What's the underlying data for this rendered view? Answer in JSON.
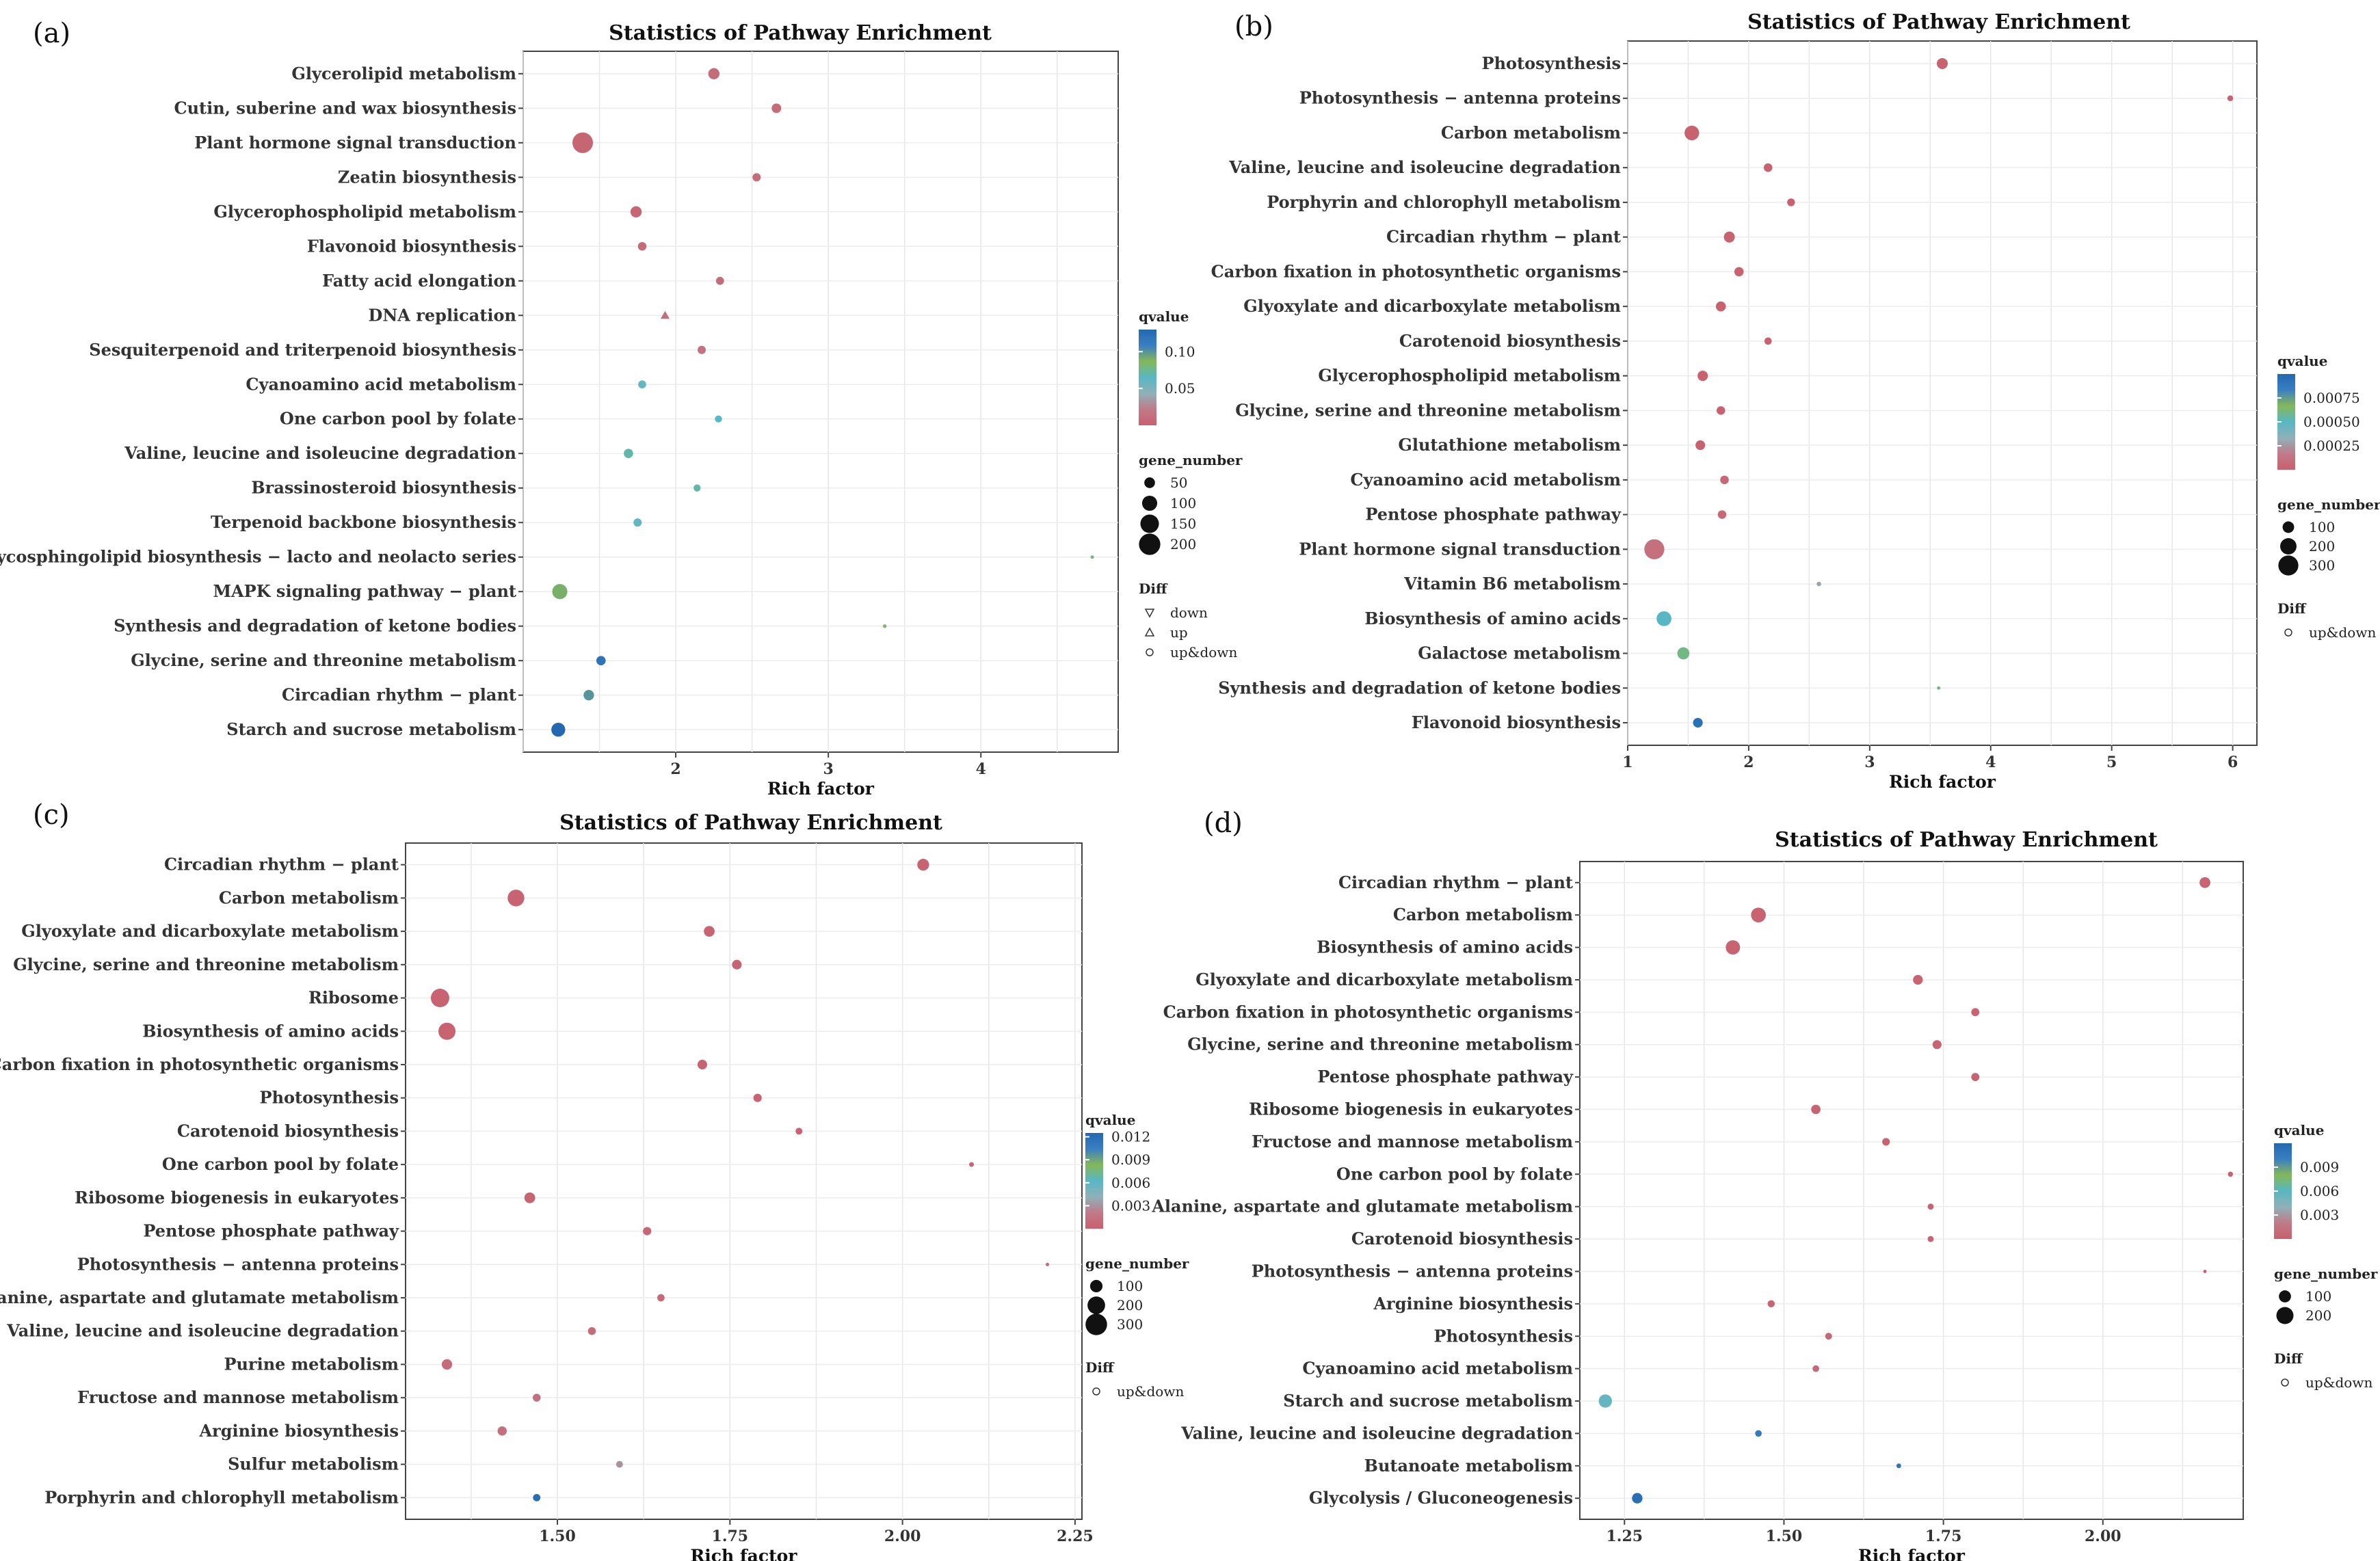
{
  "chart_data": [
    {
      "label": "(a)",
      "type": "scatter",
      "title": "Statistics of Pathway Enrichment",
      "xlabel": "Rich factor",
      "xlim": [
        1.0,
        4.9
      ],
      "xticks": [
        2,
        3,
        4
      ],
      "grid": true,
      "categories": [
        "Glycerolipid metabolism",
        "Cutin, suberine and wax biosynthesis",
        "Plant hormone signal transduction",
        "Zeatin biosynthesis",
        "Glycerophospholipid metabolism",
        "Flavonoid biosynthesis",
        "Fatty acid elongation",
        "DNA replication",
        "Sesquiterpenoid and triterpenoid biosynthesis",
        "Cyanoamino acid metabolism",
        "One carbon pool by folate",
        "Valine, leucine and isoleucine degradation",
        "Brassinosteroid biosynthesis",
        "Terpenoid backbone biosynthesis",
        "Glycosphingolipid biosynthesis − lacto and neolacto series",
        "MAPK signaling pathway − plant",
        "Synthesis and degradation of ketone bodies",
        "Glycine, serine and threonine metabolism",
        "Circadian rhythm − plant",
        "Starch and sucrose metabolism"
      ],
      "x": [
        2.25,
        2.66,
        1.39,
        2.53,
        1.74,
        1.78,
        2.29,
        1.93,
        2.17,
        1.78,
        2.28,
        1.69,
        2.14,
        1.75,
        4.73,
        1.24,
        3.37,
        1.51,
        1.43,
        1.23
      ],
      "gene_number": [
        55,
        40,
        185,
        30,
        55,
        32,
        28,
        18,
        30,
        28,
        22,
        38,
        22,
        30,
        4,
        100,
        6,
        38,
        48,
        85
      ],
      "qvalue": [
        0.01,
        0.01,
        0.005,
        0.01,
        0.005,
        0.01,
        0.01,
        0.01,
        0.015,
        0.06,
        0.065,
        0.07,
        0.07,
        0.06,
        0.08,
        0.09,
        0.085,
        0.12,
        0.1,
        0.13
      ],
      "diff": [
        "up&down",
        "up&down",
        "up&down",
        "up&down",
        "up&down",
        "up&down",
        "up&down",
        "up",
        "up&down",
        "up&down",
        "up&down",
        "up&down",
        "up&down",
        "up&down",
        "up&down",
        "up&down",
        "up&down",
        "up&down",
        "up&down",
        "up&down"
      ],
      "legend": {
        "qvalue_title": "qvalue",
        "qvalue_ticks": [
          "0.10",
          "0.05"
        ],
        "qvalue_tick_values": [
          0.1,
          0.05
        ],
        "qvalue_range": [
          0,
          0.13
        ],
        "size_title": "gene_number",
        "size_labels": [
          "50",
          "100",
          "150",
          "200"
        ],
        "size_values": [
          50,
          100,
          150,
          200
        ],
        "diff_title": "Diff",
        "diff_labels": [
          "down",
          "up",
          "up&down"
        ],
        "diff_shapes": [
          "triangle-down",
          "triangle-up",
          "circle"
        ]
      }
    },
    {
      "label": "(b)",
      "type": "scatter",
      "title": "Statistics of Pathway Enrichment",
      "xlabel": "Rich factor",
      "xlim": [
        1.0,
        6.2
      ],
      "xticks": [
        1,
        2,
        3,
        4,
        5,
        6
      ],
      "grid": true,
      "categories": [
        "Photosynthesis",
        "Photosynthesis − antenna proteins",
        "Carbon metabolism",
        "Valine, leucine and isoleucine degradation",
        "Porphyrin and chlorophyll metabolism",
        "Circadian rhythm − plant",
        "Carbon fixation in photosynthetic organisms",
        "Glyoxylate and dicarboxylate metabolism",
        "Carotenoid biosynthesis",
        "Glycerophospholipid metabolism",
        "Glycine, serine and threonine metabolism",
        "Glutathione metabolism",
        "Cyanoamino acid metabolism",
        "Pentose phosphate pathway",
        "Plant hormone signal transduction",
        "Vitamin B6 metabolism",
        "Biosynthesis of amino acids",
        "Galactose metabolism",
        "Synthesis and degradation of ketone bodies",
        "Flavonoid biosynthesis"
      ],
      "x": [
        3.6,
        5.98,
        1.53,
        2.16,
        2.35,
        1.84,
        1.92,
        1.77,
        2.16,
        1.62,
        1.77,
        1.6,
        1.8,
        1.78,
        1.22,
        2.58,
        1.3,
        1.46,
        3.57,
        1.58
      ],
      "gene_number": [
        90,
        25,
        160,
        55,
        45,
        90,
        65,
        75,
        40,
        80,
        55,
        70,
        55,
        55,
        300,
        15,
        165,
        110,
        6,
        70
      ],
      "qvalue": [
        1e-05,
        1e-05,
        1e-05,
        1e-05,
        1e-05,
        1e-05,
        1e-05,
        1e-05,
        1e-05,
        1e-05,
        1e-05,
        1e-05,
        5e-05,
        6e-05,
        0.0001,
        0.0003,
        0.0005,
        0.0006,
        0.0006,
        0.00095
      ],
      "diff": [
        "up&down",
        "up&down",
        "up&down",
        "up&down",
        "up&down",
        "up&down",
        "up&down",
        "up&down",
        "up&down",
        "up&down",
        "up&down",
        "up&down",
        "up&down",
        "up&down",
        "up&down",
        "up&down",
        "up&down",
        "up&down",
        "up&down",
        "up&down"
      ],
      "legend": {
        "qvalue_title": "qvalue",
        "qvalue_ticks": [
          "0.00075",
          "0.00050",
          "0.00025"
        ],
        "qvalue_tick_values": [
          0.00075,
          0.0005,
          0.00025
        ],
        "qvalue_range": [
          0,
          0.001
        ],
        "size_title": "gene_number",
        "size_labels": [
          "100",
          "200",
          "300"
        ],
        "size_values": [
          100,
          200,
          300
        ],
        "diff_title": "Diff",
        "diff_labels": [
          "up&down"
        ],
        "diff_shapes": [
          "circle"
        ]
      }
    },
    {
      "label": "(c)",
      "type": "scatter",
      "title": "Statistics of Pathway Enrichment",
      "xlabel": "Rich factor",
      "xlim": [
        1.28,
        2.26
      ],
      "xticks": [
        1.5,
        1.75,
        2.0,
        2.25
      ],
      "xtick_labels": [
        "1.50",
        "1.75",
        "2.00",
        "2.25"
      ],
      "grid": true,
      "categories": [
        "Circadian rhythm − plant",
        "Carbon metabolism",
        "Glyoxylate and dicarboxylate metabolism",
        "Glycine, serine and threonine metabolism",
        "Ribosome",
        "Biosynthesis of amino acids",
        "Carbon fixation in photosynthetic organisms",
        "Photosynthesis",
        "Carotenoid biosynthesis",
        "One carbon pool by folate",
        "Ribosome biogenesis in eukaryotes",
        "Pentose phosphate pathway",
        "Photosynthesis − antenna proteins",
        "Alanine, aspartate and glutamate metabolism",
        "Valine, leucine and isoleucine degradation",
        "Purine metabolism",
        "Fructose and mannose metabolism",
        "Arginine biosynthesis",
        "Sulfur metabolism",
        "Porphyrin and chlorophyll metabolism"
      ],
      "x": [
        2.03,
        1.44,
        1.72,
        1.76,
        1.33,
        1.34,
        1.71,
        1.79,
        1.85,
        2.1,
        1.46,
        1.63,
        2.21,
        1.65,
        1.55,
        1.34,
        1.47,
        1.42,
        1.59,
        1.47
      ],
      "gene_number": [
        90,
        180,
        75,
        60,
        220,
        190,
        60,
        45,
        30,
        15,
        75,
        45,
        8,
        35,
        40,
        70,
        40,
        55,
        30,
        35
      ],
      "qvalue": [
        0.0003,
        0.0003,
        0.0003,
        0.0003,
        0.0003,
        0.0003,
        0.0003,
        0.0003,
        0.0003,
        0.0004,
        0.0005,
        0.0006,
        0.0008,
        0.0008,
        0.0009,
        0.001,
        0.0012,
        0.0013,
        0.003,
        0.012
      ],
      "diff": [
        "up&down",
        "up&down",
        "up&down",
        "up&down",
        "up&down",
        "up&down",
        "up&down",
        "up&down",
        "up&down",
        "up&down",
        "up&down",
        "up&down",
        "up&down",
        "up&down",
        "up&down",
        "up&down",
        "up&down",
        "up&down",
        "up&down",
        "up&down"
      ],
      "legend": {
        "qvalue_title": "qvalue",
        "qvalue_ticks": [
          "0.012",
          "0.009",
          "0.006",
          "0.003"
        ],
        "qvalue_tick_values": [
          0.012,
          0.009,
          0.006,
          0.003
        ],
        "qvalue_range": [
          0,
          0.0125
        ],
        "size_title": "gene_number",
        "size_labels": [
          "100",
          "200",
          "300"
        ],
        "size_values": [
          100,
          200,
          300
        ],
        "diff_title": "Diff",
        "diff_labels": [
          "up&down"
        ],
        "diff_shapes": [
          "circle"
        ]
      }
    },
    {
      "label": "(d)",
      "type": "scatter",
      "title": "Statistics of Pathway Enrichment",
      "xlabel": "Rich factor",
      "xlim": [
        1.18,
        2.22
      ],
      "xticks": [
        1.25,
        1.5,
        1.75,
        2.0
      ],
      "xtick_labels": [
        "1.25",
        "1.50",
        "1.75",
        "2.00"
      ],
      "grid": true,
      "categories": [
        "Circadian rhythm − plant",
        "Carbon metabolism",
        "Biosynthesis of amino acids",
        "Glyoxylate and dicarboxylate metabolism",
        "Carbon fixation in photosynthetic organisms",
        "Glycine, serine and threonine metabolism",
        "Pentose phosphate pathway",
        "Ribosome biogenesis in eukaryotes",
        "Fructose and mannose metabolism",
        "One carbon pool by folate",
        "Alanine, aspartate and glutamate metabolism",
        "Carotenoid biosynthesis",
        "Photosynthesis − antenna proteins",
        "Arginine biosynthesis",
        "Photosynthesis",
        "Cyanoamino acid metabolism",
        "Starch and sucrose metabolism",
        "Valine, leucine and isoleucine degradation",
        "Butanoate metabolism",
        "Glycolysis / Gluconeogenesis"
      ],
      "x": [
        2.16,
        1.46,
        1.42,
        1.71,
        1.8,
        1.74,
        1.8,
        1.55,
        1.66,
        2.2,
        1.73,
        1.73,
        2.16,
        1.48,
        1.57,
        1.55,
        1.22,
        1.46,
        1.68,
        1.27
      ],
      "gene_number": [
        80,
        150,
        140,
        65,
        45,
        55,
        45,
        60,
        40,
        18,
        25,
        25,
        5,
        35,
        32,
        30,
        120,
        30,
        15,
        75
      ],
      "qvalue": [
        0.0003,
        0.0003,
        0.0003,
        0.0003,
        0.0003,
        0.0003,
        0.0003,
        0.0003,
        0.0003,
        0.0003,
        0.0003,
        0.0003,
        0.0003,
        0.0004,
        0.0005,
        0.0006,
        0.0055,
        0.0105,
        0.011,
        0.0115
      ],
      "diff": [
        "up&down",
        "up&down",
        "up&down",
        "up&down",
        "up&down",
        "up&down",
        "up&down",
        "up&down",
        "up&down",
        "up&down",
        "up&down",
        "up&down",
        "up&down",
        "up&down",
        "up&down",
        "up&down",
        "up&down",
        "up&down",
        "up&down",
        "up&down"
      ],
      "legend": {
        "qvalue_title": "qvalue",
        "qvalue_ticks": [
          "0.009",
          "0.006",
          "0.003"
        ],
        "qvalue_tick_values": [
          0.009,
          0.006,
          0.003
        ],
        "qvalue_range": [
          0,
          0.012
        ],
        "size_title": "gene_number",
        "size_labels": [
          "100",
          "200"
        ],
        "size_values": [
          100,
          200
        ],
        "diff_title": "Diff",
        "diff_labels": [
          "up&down"
        ],
        "diff_shapes": [
          "circle"
        ]
      }
    }
  ]
}
